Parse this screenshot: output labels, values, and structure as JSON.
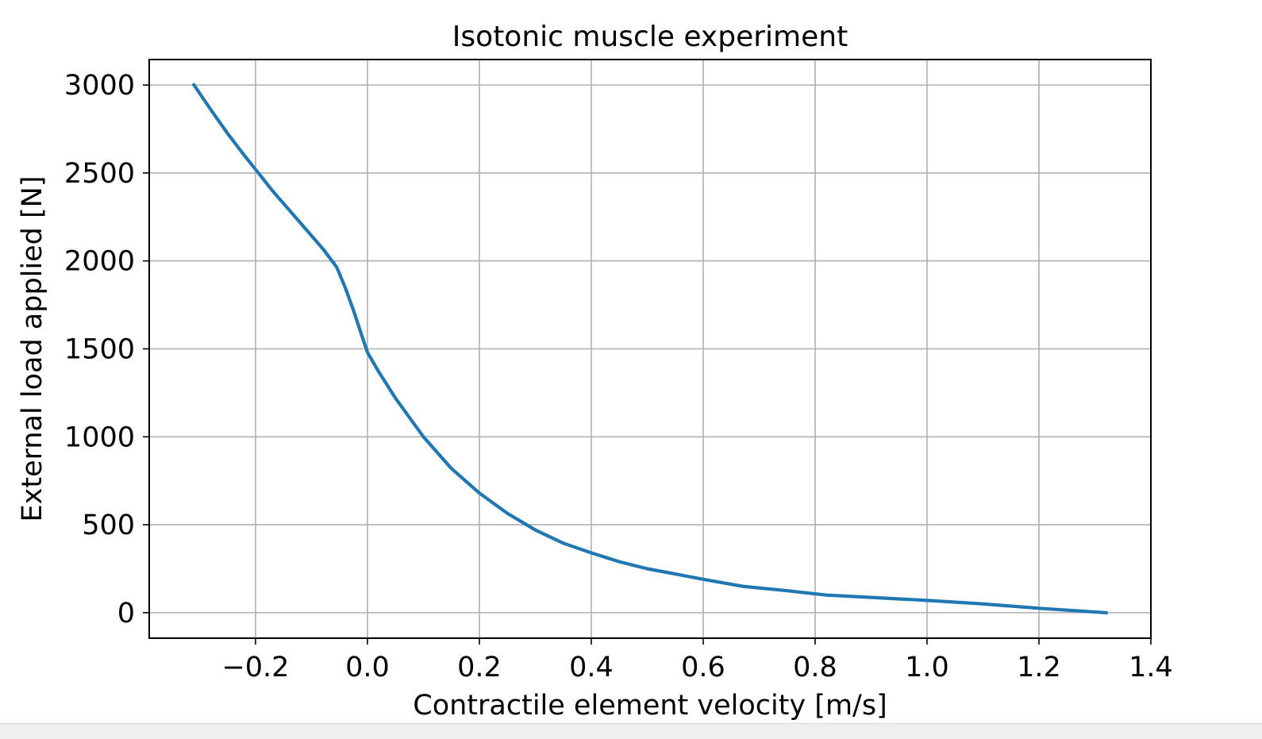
{
  "chart_data": {
    "type": "line",
    "title": "Isotonic muscle experiment",
    "xlabel": "Contractile element velocity [m/s]",
    "ylabel": "External load applied [N]",
    "xlim": [
      -0.39,
      1.4
    ],
    "ylim": [
      -145,
      3145
    ],
    "xticks": [
      -0.2,
      0.0,
      0.2,
      0.4,
      0.6,
      0.8,
      1.0,
      1.2,
      1.4
    ],
    "xtick_labels": [
      "−0.2",
      "0.0",
      "0.2",
      "0.4",
      "0.6",
      "0.8",
      "1.0",
      "1.2",
      "1.4"
    ],
    "yticks": [
      0,
      500,
      1000,
      1500,
      2000,
      2500,
      3000
    ],
    "ytick_labels": [
      "0",
      "500",
      "1000",
      "1500",
      "2000",
      "2500",
      "3000"
    ],
    "grid": true,
    "series": [
      {
        "color": "#1f77b4",
        "x": [
          -0.31,
          -0.28,
          -0.25,
          -0.22,
          -0.2,
          -0.17,
          -0.14,
          -0.11,
          -0.08,
          -0.055,
          -0.04,
          -0.025,
          -0.01,
          0.0,
          0.02,
          0.05,
          0.1,
          0.15,
          0.2,
          0.25,
          0.3,
          0.35,
          0.4,
          0.45,
          0.5,
          0.55,
          0.6,
          0.67,
          0.75,
          0.82,
          0.9,
          1.0,
          1.1,
          1.2,
          1.32
        ],
        "y": [
          3000,
          2860,
          2725,
          2600,
          2520,
          2400,
          2290,
          2180,
          2070,
          1965,
          1850,
          1720,
          1575,
          1480,
          1370,
          1220,
          1000,
          820,
          680,
          565,
          470,
          395,
          340,
          290,
          250,
          220,
          190,
          150,
          125,
          100,
          87,
          70,
          50,
          25,
          0
        ]
      }
    ]
  }
}
